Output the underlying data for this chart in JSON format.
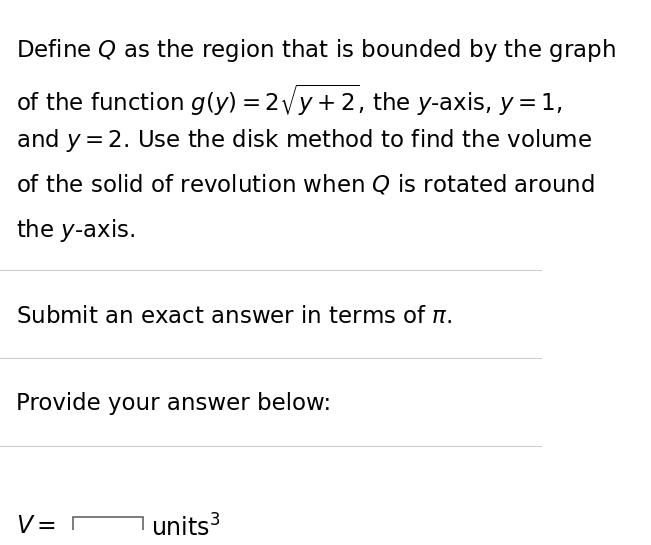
{
  "background_color": "#ffffff",
  "text_color": "#000000",
  "line_color": "#cccccc",
  "paragraph1_lines": [
    "Define $\\mathit{Q}$ as the region that is bounded by the graph",
    "of the function $g(y) = 2\\sqrt{y+2}$, the $y$-axis, $y = 1$,",
    "and $y = 2$. Use the disk method to find the volume",
    "of the solid of revolution when $\\mathit{Q}$ is rotated around",
    "the $y$-axis."
  ],
  "paragraph2": "Submit an exact answer in terms of $\\pi$.",
  "paragraph3": "Provide your answer below:",
  "answer_label": "$V = $",
  "answer_suffix": "units$^3$",
  "main_fontsize": 16.5,
  "label_fontsize": 17,
  "fig_width": 6.51,
  "fig_height": 5.45,
  "dpi": 100
}
